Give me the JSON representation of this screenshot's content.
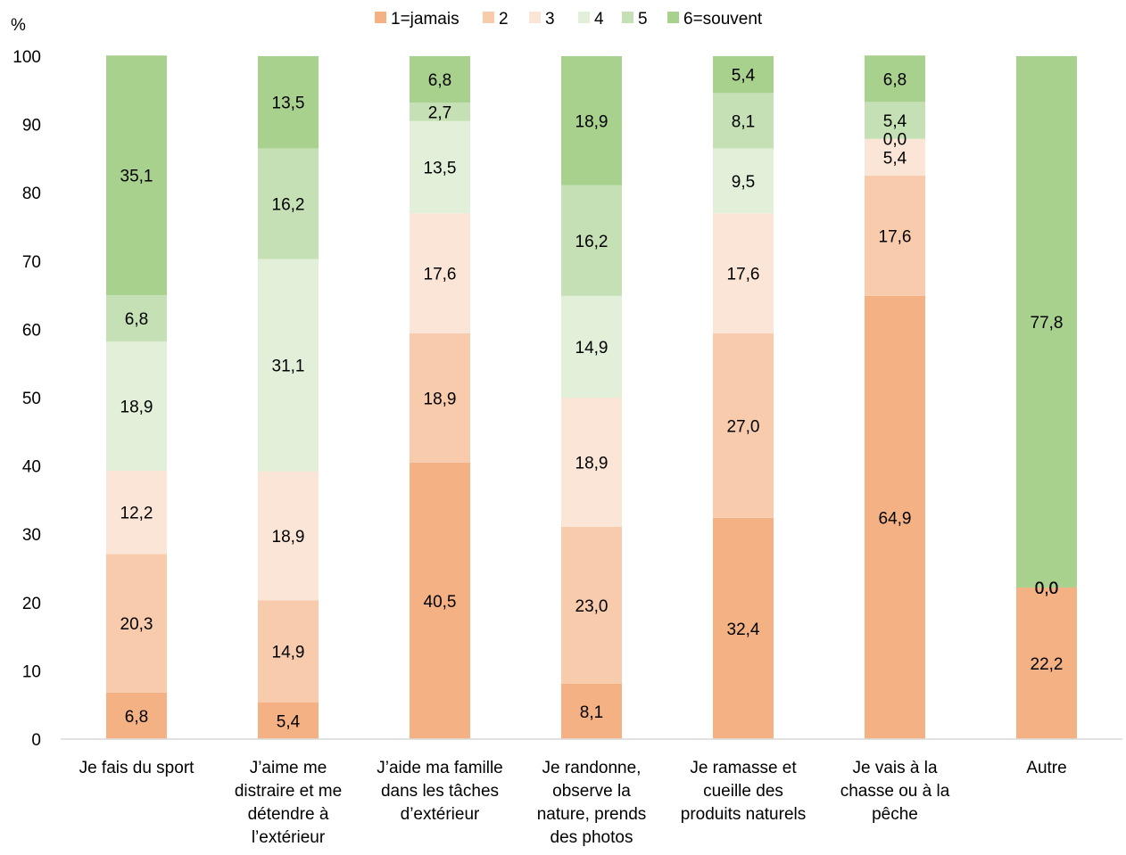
{
  "chart_data": {
    "type": "bar",
    "stacked": true,
    "unit_label": "%",
    "ylim": [
      0,
      100
    ],
    "ytick_step": 10,
    "grid": false,
    "legend_position": "top",
    "categories": [
      [
        "Je fais du sport"
      ],
      [
        "J’aime me",
        "distraire et me",
        "détendre à",
        "l’extérieur"
      ],
      [
        "J’aide ma famille",
        "dans les tâches",
        "d’extérieur"
      ],
      [
        "Je randonne,",
        "observe la",
        "nature, prends",
        "des photos"
      ],
      [
        "Je ramasse et",
        "cueille des",
        "produits naturels"
      ],
      [
        "Je vais à la",
        "chasse ou à la",
        "pêche"
      ],
      [
        "Autre"
      ]
    ],
    "series": [
      {
        "name": "1=jamais",
        "color": "#F4B183",
        "values": [
          6.8,
          5.4,
          40.5,
          8.1,
          32.4,
          64.9,
          22.2
        ],
        "labels": [
          "6,8",
          "5,4",
          "40,5",
          "8,1",
          "32,4",
          "64,9",
          "22,2"
        ]
      },
      {
        "name": "2",
        "color": "#F8CBAD",
        "values": [
          20.3,
          14.9,
          18.9,
          23.0,
          27.0,
          17.6,
          0.0
        ],
        "labels": [
          "20,3",
          "14,9",
          "18,9",
          "23,0",
          "27,0",
          "17,6",
          "0,0"
        ]
      },
      {
        "name": "3",
        "color": "#FBE5D6",
        "values": [
          12.2,
          18.9,
          17.6,
          18.9,
          17.6,
          5.4,
          0.0
        ],
        "labels": [
          "12,2",
          "18,9",
          "17,6",
          "18,9",
          "17,6",
          "5,4",
          "0,0"
        ]
      },
      {
        "name": "4",
        "color": "#E2F0D9",
        "values": [
          18.9,
          31.1,
          13.5,
          14.9,
          9.5,
          0.0,
          0.0
        ],
        "labels": [
          "18,9",
          "31,1",
          "13,5",
          "14,9",
          "9,5",
          "0,0",
          "0,0"
        ]
      },
      {
        "name": "5",
        "color": "#C5E0B4",
        "values": [
          6.8,
          16.2,
          2.7,
          16.2,
          8.1,
          5.4,
          0.0
        ],
        "labels": [
          "6,8",
          "16,2",
          "2,7",
          "16,2",
          "8,1",
          "5,4",
          "0,0"
        ]
      },
      {
        "name": "6=souvent",
        "color": "#A9D18E",
        "values": [
          35.1,
          13.5,
          6.8,
          18.9,
          5.4,
          6.8,
          77.8
        ],
        "labels": [
          "35,1",
          "13,5",
          "6,8",
          "18,9",
          "5,4",
          "6,8",
          "77,8"
        ]
      }
    ]
  }
}
